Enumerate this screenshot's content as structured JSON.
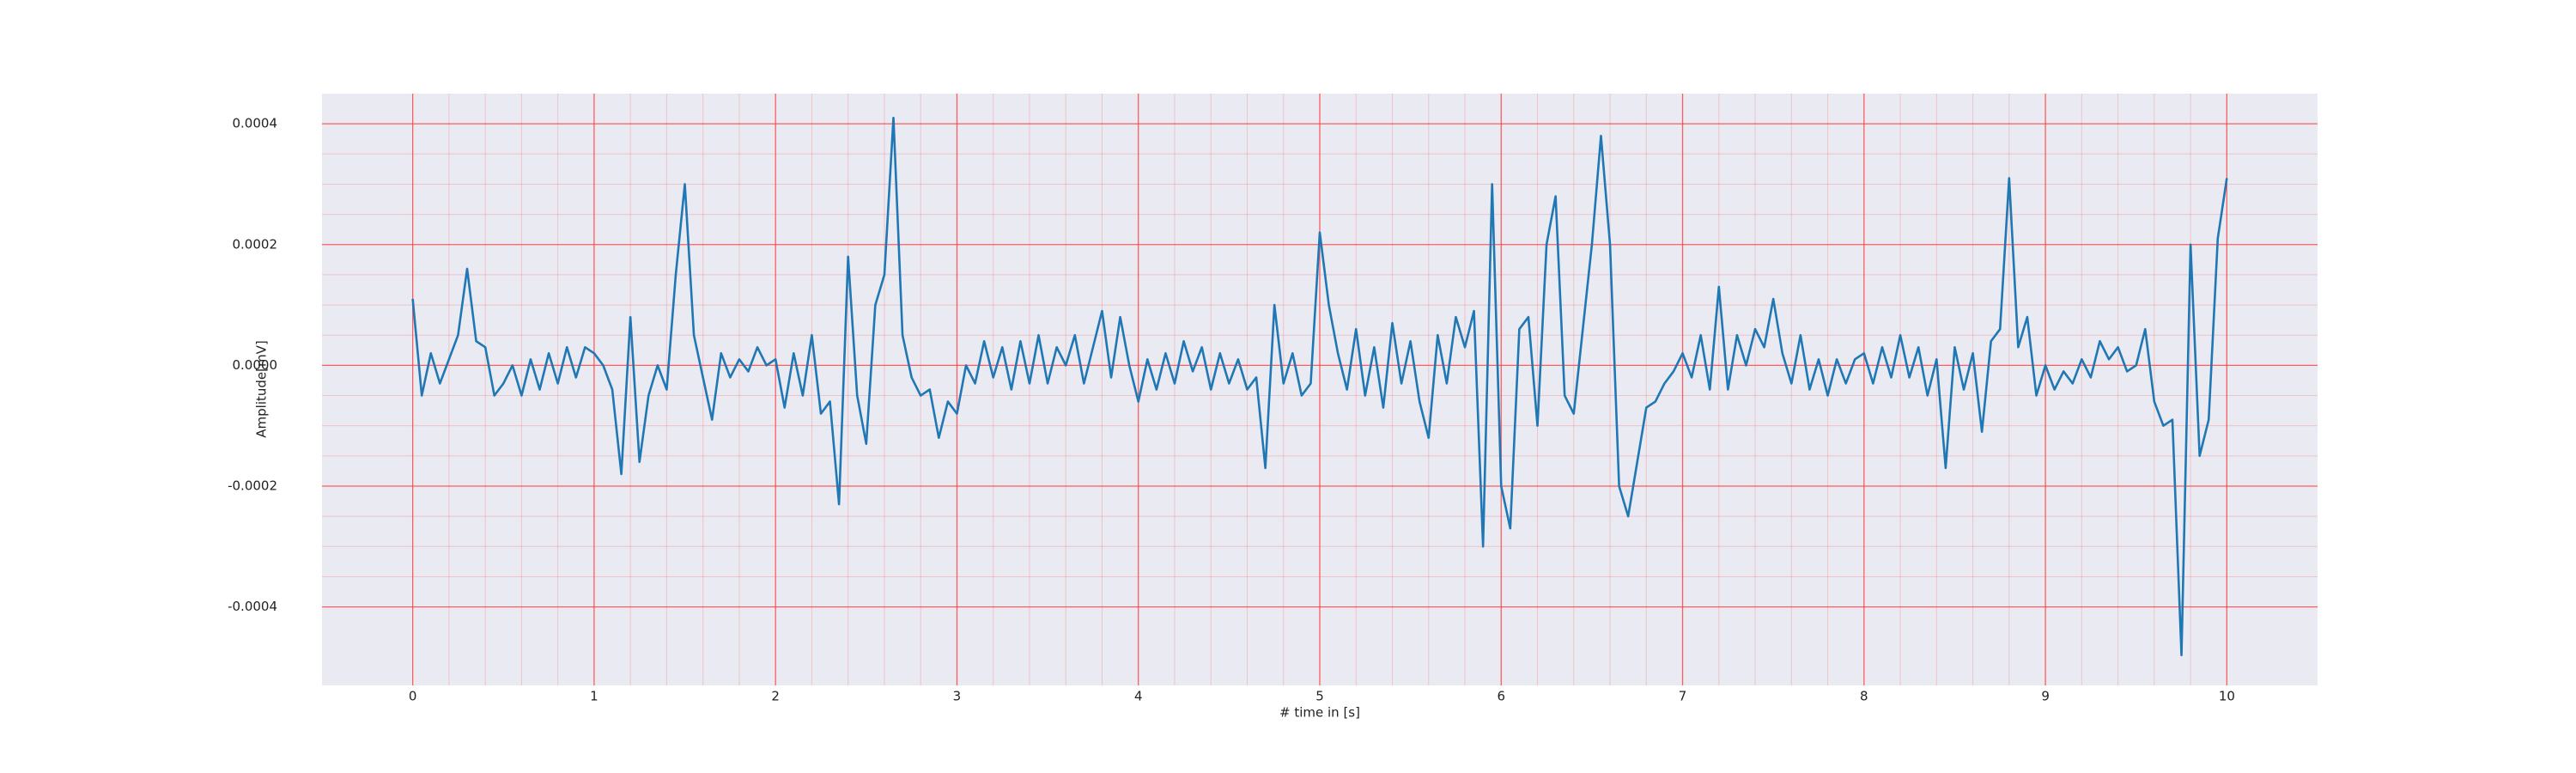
{
  "chart_data": {
    "type": "line",
    "xlabel": "# time in [s]",
    "ylabel": "Amplitude[mV]",
    "xlim": [
      -0.5,
      10.5
    ],
    "ylim": [
      -0.00053,
      0.00045
    ],
    "xticks": [
      0,
      1,
      2,
      3,
      4,
      5,
      6,
      7,
      8,
      9,
      10
    ],
    "yticks": [
      {
        "value": -0.0004,
        "label": "-0.0004"
      },
      {
        "value": -0.0002,
        "label": "-0.0002"
      },
      {
        "value": 0,
        "label": "0.0000"
      },
      {
        "value": 0.0002,
        "label": "0.0002"
      },
      {
        "value": 0.0004,
        "label": "0.0004"
      }
    ],
    "grid": true,
    "minor_grid": true,
    "grid_color": "#ff3b3b",
    "background": "#eaeaf2",
    "series": [
      {
        "color": "#1f77b4",
        "x": [
          0,
          0.05,
          0.1,
          0.15,
          0.2,
          0.25,
          0.3,
          0.35,
          0.4,
          0.45,
          0.5,
          0.55,
          0.6,
          0.65,
          0.7,
          0.75,
          0.8,
          0.85,
          0.9,
          0.95,
          1,
          1.05,
          1.1,
          1.15,
          1.2,
          1.25,
          1.3,
          1.35,
          1.4,
          1.45,
          1.5,
          1.55,
          1.6,
          1.65,
          1.7,
          1.75,
          1.8,
          1.85,
          1.9,
          1.95,
          2,
          2.05,
          2.1,
          2.15,
          2.2,
          2.25,
          2.3,
          2.35,
          2.4,
          2.45,
          2.5,
          2.55,
          2.6,
          2.65,
          2.7,
          2.75,
          2.8,
          2.85,
          2.9,
          2.95,
          3,
          3.05,
          3.1,
          3.15,
          3.2,
          3.25,
          3.3,
          3.35,
          3.4,
          3.45,
          3.5,
          3.55,
          3.6,
          3.65,
          3.7,
          3.75,
          3.8,
          3.85,
          3.9,
          3.95,
          4,
          4.05,
          4.1,
          4.15,
          4.2,
          4.25,
          4.3,
          4.35,
          4.4,
          4.45,
          4.5,
          4.55,
          4.6,
          4.65,
          4.7,
          4.75,
          4.8,
          4.85,
          4.9,
          4.95,
          5,
          5.05,
          5.1,
          5.15,
          5.2,
          5.25,
          5.3,
          5.35,
          5.4,
          5.45,
          5.5,
          5.55,
          5.6,
          5.65,
          5.7,
          5.75,
          5.8,
          5.85,
          5.9,
          5.95,
          6,
          6.05,
          6.1,
          6.15,
          6.2,
          6.25,
          6.3,
          6.35,
          6.4,
          6.45,
          6.5,
          6.55,
          6.6,
          6.65,
          6.7,
          6.75,
          6.8,
          6.85,
          6.9,
          6.95,
          7,
          7.05,
          7.1,
          7.15,
          7.2,
          7.25,
          7.3,
          7.35,
          7.4,
          7.45,
          7.5,
          7.55,
          7.6,
          7.65,
          7.7,
          7.75,
          7.8,
          7.85,
          7.9,
          7.95,
          8,
          8.05,
          8.1,
          8.15,
          8.2,
          8.25,
          8.3,
          8.35,
          8.4,
          8.45,
          8.5,
          8.55,
          8.6,
          8.65,
          8.7,
          8.75,
          8.8,
          8.85,
          8.9,
          8.95,
          9,
          9.05,
          9.1,
          9.15,
          9.2,
          9.25,
          9.3,
          9.35,
          9.4,
          9.45,
          9.5,
          9.55,
          9.6,
          9.65,
          9.7,
          9.75,
          9.8,
          9.85,
          9.9,
          9.95,
          10
        ],
        "values": [
          0.00011,
          -5e-05,
          2e-05,
          -3e-05,
          1e-05,
          5e-05,
          0.00016,
          4e-05,
          3e-05,
          -5e-05,
          -3e-05,
          0,
          -5e-05,
          1e-05,
          -4e-05,
          2e-05,
          -3e-05,
          3e-05,
          -2e-05,
          3e-05,
          2e-05,
          0,
          -4e-05,
          -0.00018,
          8e-05,
          -0.00016,
          -5e-05,
          0,
          -4e-05,
          0.00015,
          0.0003,
          5e-05,
          -2e-05,
          -9e-05,
          2e-05,
          -2e-05,
          1e-05,
          -1e-05,
          3e-05,
          0,
          1e-05,
          -7e-05,
          2e-05,
          -5e-05,
          5e-05,
          -8e-05,
          -6e-05,
          -0.00023,
          0.00018,
          -5e-05,
          -0.00013,
          0.0001,
          0.00015,
          0.00041,
          5e-05,
          -2e-05,
          -5e-05,
          -4e-05,
          -0.00012,
          -6e-05,
          -8e-05,
          0,
          -3e-05,
          4e-05,
          -2e-05,
          3e-05,
          -4e-05,
          4e-05,
          -3e-05,
          5e-05,
          -3e-05,
          3e-05,
          0,
          5e-05,
          -3e-05,
          3e-05,
          9e-05,
          -2e-05,
          8e-05,
          0,
          -6e-05,
          1e-05,
          -4e-05,
          2e-05,
          -3e-05,
          4e-05,
          -1e-05,
          3e-05,
          -4e-05,
          2e-05,
          -3e-05,
          1e-05,
          -4e-05,
          -2e-05,
          -0.00017,
          0.0001,
          -3e-05,
          2e-05,
          -5e-05,
          -3e-05,
          0.00022,
          0.0001,
          2e-05,
          -4e-05,
          6e-05,
          -5e-05,
          3e-05,
          -7e-05,
          7e-05,
          -3e-05,
          4e-05,
          -6e-05,
          -0.00012,
          5e-05,
          -3e-05,
          8e-05,
          3e-05,
          9e-05,
          -0.0003,
          0.0003,
          -0.0002,
          -0.00027,
          6e-05,
          8e-05,
          -0.0001,
          0.0002,
          0.00028,
          -5e-05,
          -8e-05,
          6e-05,
          0.0002,
          0.00038,
          0.0002,
          -0.0002,
          -0.00025,
          -0.00016,
          -7e-05,
          -6e-05,
          -3e-05,
          -1e-05,
          2e-05,
          -2e-05,
          5e-05,
          -4e-05,
          0.00013,
          -4e-05,
          5e-05,
          0,
          6e-05,
          3e-05,
          0.00011,
          2e-05,
          -3e-05,
          5e-05,
          -4e-05,
          1e-05,
          -5e-05,
          1e-05,
          -3e-05,
          1e-05,
          2e-05,
          -3e-05,
          3e-05,
          -2e-05,
          5e-05,
          -2e-05,
          3e-05,
          -5e-05,
          1e-05,
          -0.00017,
          3e-05,
          -4e-05,
          2e-05,
          -0.00011,
          4e-05,
          6e-05,
          0.00031,
          3e-05,
          8e-05,
          -5e-05,
          0,
          -4e-05,
          -1e-05,
          -3e-05,
          1e-05,
          -2e-05,
          4e-05,
          1e-05,
          3e-05,
          -1e-05,
          0,
          6e-05,
          -6e-05,
          -0.0001,
          -9e-05,
          -0.00048,
          0.0002,
          -0.00015,
          -9e-05,
          0.00021,
          0.00031
        ]
      }
    ]
  }
}
